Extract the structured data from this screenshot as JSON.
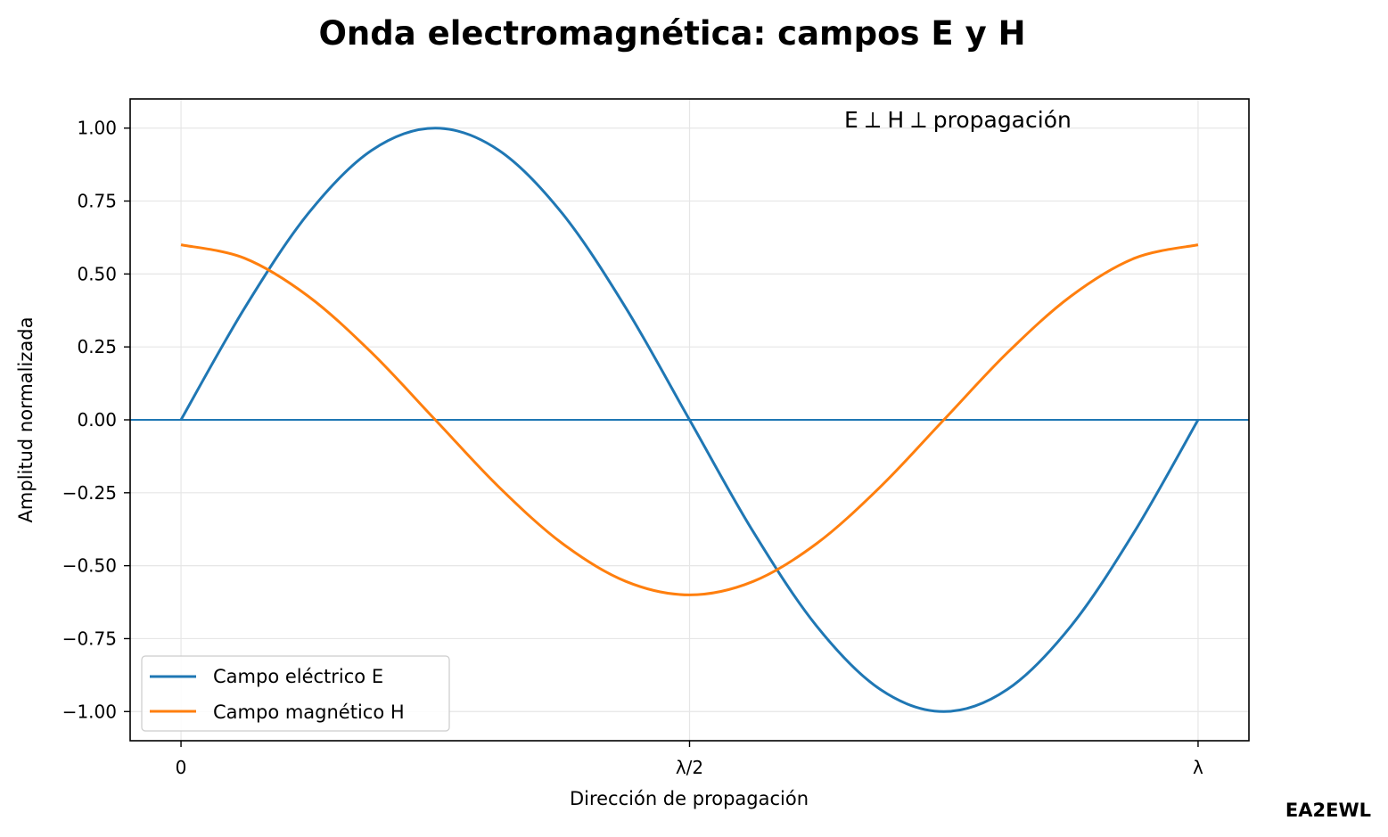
{
  "chart_data": {
    "type": "line",
    "title": "Onda electromagnética: campos E y H",
    "xlabel": "Dirección de propagación",
    "ylabel": "Amplitud normalizada",
    "xlim": [
      -0.05,
      1.05
    ],
    "ylim": [
      -1.1,
      1.1
    ],
    "x_ticks": [
      {
        "value": 0,
        "label": "0"
      },
      {
        "value": 0.5,
        "label": "λ/2"
      },
      {
        "value": 1,
        "label": "λ"
      }
    ],
    "y_ticks": [
      {
        "value": 1.0,
        "label": "1.00"
      },
      {
        "value": 0.75,
        "label": "0.75"
      },
      {
        "value": 0.5,
        "label": "0.50"
      },
      {
        "value": 0.25,
        "label": "0.25"
      },
      {
        "value": 0.0,
        "label": "0.00"
      },
      {
        "value": -0.25,
        "label": "−0.25"
      },
      {
        "value": -0.5,
        "label": "−0.50"
      },
      {
        "value": -0.75,
        "label": "−0.75"
      },
      {
        "value": -1.0,
        "label": "−1.00"
      }
    ],
    "x": [
      0,
      0.0625,
      0.125,
      0.1875,
      0.25,
      0.3125,
      0.375,
      0.4375,
      0.5,
      0.5625,
      0.625,
      0.6875,
      0.75,
      0.8125,
      0.875,
      0.9375,
      1
    ],
    "series": [
      {
        "name": "Campo eléctrico E",
        "color": "#1f77b4",
        "values": [
          0,
          0.383,
          0.707,
          0.924,
          1,
          0.924,
          0.707,
          0.383,
          0,
          -0.383,
          -0.707,
          -0.924,
          -1,
          -0.924,
          -0.707,
          -0.383,
          0
        ]
      },
      {
        "name": "Campo magnético H",
        "color": "#ff7f0e",
        "values": [
          0.6,
          0.554,
          0.424,
          0.23,
          0,
          -0.23,
          -0.424,
          -0.554,
          -0.6,
          -0.554,
          -0.424,
          -0.23,
          0,
          0.23,
          0.424,
          0.554,
          0.6
        ]
      }
    ],
    "hline": {
      "y": 0,
      "color": "#1f77b4"
    },
    "grid": true,
    "legend_position": "lower-left",
    "annotation": "E ⟂ H ⟂ propagación",
    "watermark": "EA2EWL"
  }
}
